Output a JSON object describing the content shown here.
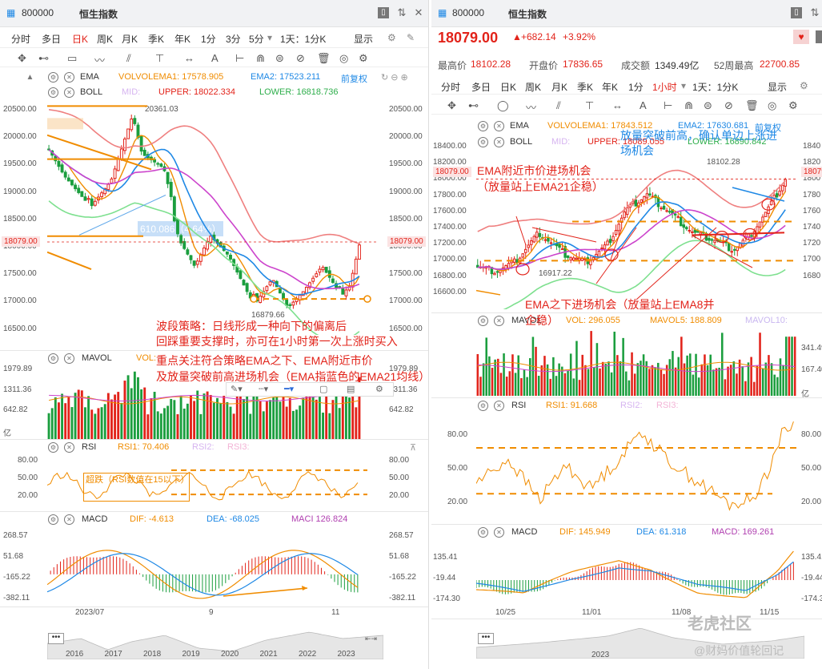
{
  "left": {
    "tabs": {
      "code": "800000",
      "name": "恒生指数"
    },
    "periods": [
      "分时",
      "多日",
      "日K",
      "周K",
      "月K",
      "季K",
      "年K",
      "1分",
      "3分",
      "5分"
    ],
    "active_period": "日K",
    "period_select": "1天：1分K",
    "display_label": "显示",
    "ema_legend": {
      "label": "EMA",
      "vol": "VOLVOLEMA1: 17578.905",
      "ema2": "EMA2: 17523.211",
      "fq": "前复权"
    },
    "boll_legend": {
      "label": "BOLL",
      "mid": "MID:",
      "upper": "UPPER: 18022.334",
      "lower": "LOWER: 16818.736"
    },
    "price_axis": [
      "20500.00",
      "20000.00",
      "19500.00",
      "19000.00",
      "18500.00",
      "18000.00",
      "17500.00",
      "17000.00",
      "16500.00"
    ],
    "current_price": "18079.00",
    "high_label": "20361.03",
    "low_label": "16879.66",
    "measure_label": "610.086（4.64%）",
    "mavol_legend": {
      "label": "MAVOL",
      "vol": "VOL:"
    },
    "mavol_axis": [
      "1979.89",
      "1311.36",
      "642.82",
      "亿"
    ],
    "rsi_legend": {
      "label": "RSI",
      "rsi1": "RSI1: 70.406",
      "rsi2": "RSI2:",
      "rsi3": "RSI3:"
    },
    "rsi_axis": [
      "80.00",
      "50.00",
      "20.00"
    ],
    "rsi_note": "超跌（RSI数值在15以下）",
    "macd_legend": {
      "label": "MACD",
      "dif": "DIF: -4.613",
      "dea": "DEA: -68.025",
      "macd": "MACI 126.824"
    },
    "macd_axis": [
      "268.57",
      "51.68",
      "-165.22",
      "-382.11"
    ],
    "time_axis": [
      "2023/07",
      "9",
      "11"
    ],
    "overview_axis": [
      "2016",
      "2017",
      "2018",
      "2019",
      "2020",
      "2021",
      "2022",
      "2023"
    ],
    "annotation": [
      "波段策略：日线形成一种向下的偏离后",
      "回踩重要支撑时，亦可在1小时第一次上涨时买入",
      "重点关注符合策略EMA之下、EMA附近市价",
      "及放量突破前高进场机会（EMA指蓝色的EMA21均线）"
    ]
  },
  "right": {
    "tabs": {
      "code": "800000",
      "name": "恒生指数"
    },
    "price": "18079.00",
    "change": "+682.14",
    "change_pct": "+3.92%",
    "stats": {
      "high_label": "最高价",
      "high": "18102.28",
      "open_label": "开盘价",
      "open": "17836.65",
      "amount_label": "成交额",
      "amount": "1349.49亿",
      "w52_label": "52周最高",
      "w52": "22700.85"
    },
    "periods": [
      "分时",
      "多日",
      "日K",
      "周K",
      "月K",
      "季K",
      "年K",
      "1分",
      "1小时"
    ],
    "active_period": "1小时",
    "period_select": "1天：1分K",
    "display_label": "显示",
    "ema_legend": {
      "label": "EMA",
      "vol": "VOLVOLEMA1: 17843.512",
      "ema2": "EMA2: 17630.681",
      "fq": "前复权"
    },
    "boll_legend": {
      "label": "BOLL",
      "mid": "MID:",
      "upper": "UPPER: 18089.055",
      "lower": "LOWER: 16890.842"
    },
    "price_axis": [
      "18400.00",
      "18200.00",
      "18000.00",
      "17800.00",
      "17600.00",
      "17400.00",
      "17200.00",
      "17000.00",
      "16800.00",
      "16600.00"
    ],
    "right_axis": [
      "1840",
      "1820",
      "1800",
      "1780",
      "1760",
      "1740",
      "1720",
      "1700",
      "1680"
    ],
    "current_price": "18079.00",
    "high_label": "18102.28",
    "low_label": "16917.22",
    "mavol_legend": {
      "label": "MAVOL",
      "vol": "VOL: 296.055",
      "mavol5": "MAVOL5: 188.809",
      "mavol10": "MAVOL10:"
    },
    "mavol_axis": [
      "341.49",
      "167.40",
      "亿"
    ],
    "rsi_legend": {
      "label": "RSI",
      "rsi1": "RSI1: 91.668",
      "rsi2": "RSI2:",
      "rsi3": "RSI3:"
    },
    "rsi_axis": [
      "80.00",
      "50.00",
      "20.00"
    ],
    "macd_legend": {
      "label": "MACD",
      "dif": "DIF: 145.949",
      "dea": "DEA: 61.318",
      "macd": "MACD: 169.261"
    },
    "macd_axis": [
      "135.41",
      "-19.44",
      "-174.30"
    ],
    "time_axis": [
      "10/25",
      "11/01",
      "11/08",
      "11/15"
    ],
    "overview_year": "2023",
    "anno_ema_near": [
      "EMA附近市价进场机会",
      "（放量站上EMA21企稳）"
    ],
    "anno_breakout": [
      "放量突破前高，确认单边上涨进",
      "场机会"
    ],
    "anno_below": [
      "EMA之下进场机会（放量站上EMA8并",
      "企稳）"
    ],
    "watermark1": "老虎社区",
    "watermark2": "@财妈价值轮回记"
  }
}
